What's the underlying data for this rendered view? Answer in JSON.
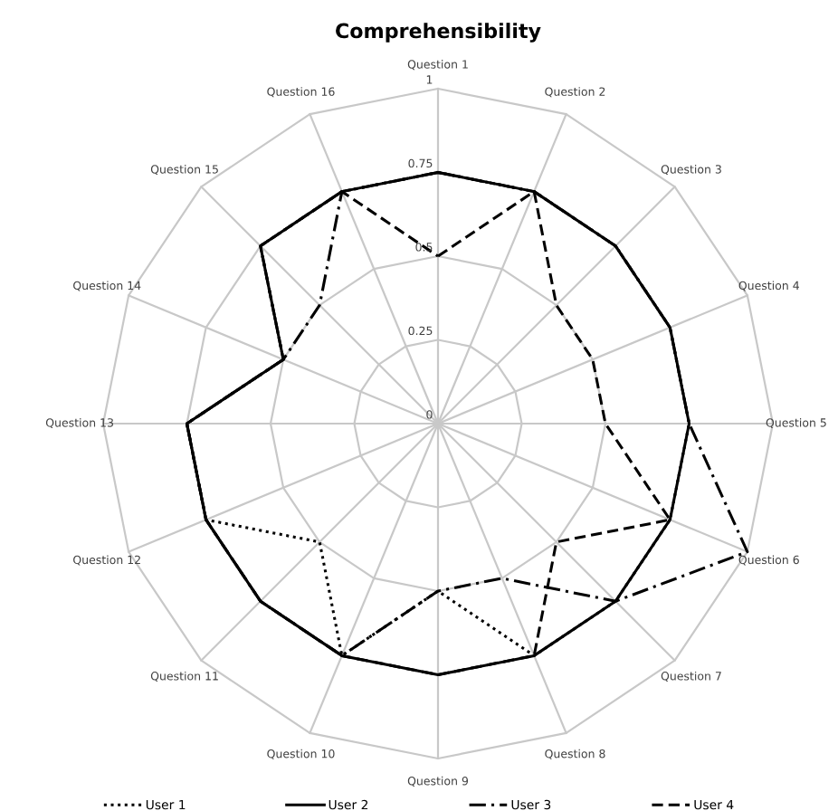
{
  "chart_data": {
    "type": "radar",
    "title": "Comprehensibility",
    "categories": [
      "Question 1",
      "Question 2",
      "Question 3",
      "Question 4",
      "Question 5",
      "Question 6",
      "Question 7",
      "Question 8",
      "Question 9",
      "Question 10",
      "Question 11",
      "Question 12",
      "Question 13",
      "Question 14",
      "Question 15",
      "Question 16"
    ],
    "ylim": [
      0,
      1
    ],
    "yticks": [
      0,
      0.25,
      0.5,
      0.75,
      1
    ],
    "grid": true,
    "legend": "bottom",
    "marker": "none",
    "series": [
      {
        "name": "User 1",
        "color": "#000000",
        "line_style": "dotted",
        "values": [
          0.75,
          0.75,
          0.75,
          0.75,
          0.75,
          0.75,
          0.75,
          0.75,
          0.5,
          0.75,
          0.5,
          0.75,
          0.75,
          0.5,
          0.75,
          0.75
        ]
      },
      {
        "name": "User 2",
        "color": "#000000",
        "line_style": "solid",
        "values": [
          0.75,
          0.75,
          0.75,
          0.75,
          0.75,
          0.75,
          0.75,
          0.75,
          0.75,
          0.75,
          0.75,
          0.75,
          0.75,
          0.5,
          0.75,
          0.75
        ]
      },
      {
        "name": "User 3",
        "color": "#000000",
        "line_style": "dashdot",
        "values": [
          0.75,
          0.75,
          0.75,
          0.75,
          0.75,
          1,
          0.75,
          0.5,
          0.5,
          0.75,
          0.75,
          0.75,
          0.75,
          0.5,
          0.5,
          0.75
        ]
      },
      {
        "name": "User 4",
        "color": "#000000",
        "line_style": "dashed",
        "values": [
          0.5,
          0.75,
          0.5,
          0.5,
          0.5,
          0.75,
          0.5,
          0.75,
          0.75,
          0.75,
          0.75,
          0.75,
          0.75,
          0.5,
          0.75,
          0.75
        ]
      }
    ]
  }
}
